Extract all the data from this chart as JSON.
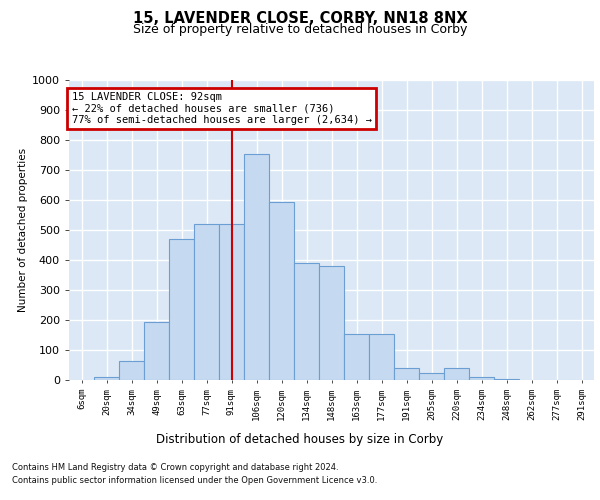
{
  "title": "15, LAVENDER CLOSE, CORBY, NN18 8NX",
  "subtitle": "Size of property relative to detached houses in Corby",
  "xlabel": "Distribution of detached houses by size in Corby",
  "ylabel": "Number of detached properties",
  "bar_color": "#c5d9f0",
  "bar_edge_color": "#6b9fd4",
  "background_color": "#dce8f5",
  "grid_color": "#ffffff",
  "fig_bg_color": "#ffffff",
  "vline_color": "#cc0000",
  "annotation_text": "15 LAVENDER CLOSE: 92sqm\n← 22% of detached houses are smaller (736)\n77% of semi-detached houses are larger (2,634) →",
  "annotation_box_color": "#ffffff",
  "annotation_box_edge": "#cc0000",
  "categories": [
    "6sqm",
    "20sqm",
    "34sqm",
    "49sqm",
    "63sqm",
    "77sqm",
    "91sqm",
    "106sqm",
    "120sqm",
    "134sqm",
    "148sqm",
    "163sqm",
    "177sqm",
    "191sqm",
    "205sqm",
    "220sqm",
    "234sqm",
    "248sqm",
    "262sqm",
    "277sqm",
    "291sqm"
  ],
  "bar_heights": [
    0,
    10,
    65,
    195,
    470,
    520,
    520,
    755,
    595,
    390,
    380,
    155,
    155,
    40,
    25,
    40,
    10,
    5,
    0,
    0,
    0
  ],
  "vline_category_index": 6,
  "ylim": [
    0,
    1000
  ],
  "yticks": [
    0,
    100,
    200,
    300,
    400,
    500,
    600,
    700,
    800,
    900,
    1000
  ],
  "footer_line1": "Contains HM Land Registry data © Crown copyright and database right 2024.",
  "footer_line2": "Contains public sector information licensed under the Open Government Licence v3.0."
}
